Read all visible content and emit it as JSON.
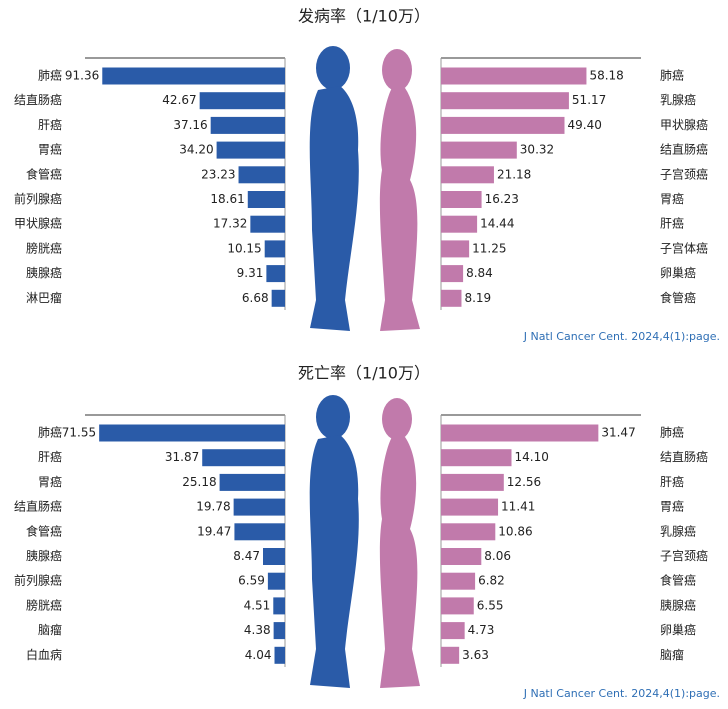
{
  "chart_data": [
    {
      "type": "butterfly",
      "title": "发病率（1/10万）",
      "source": "J Natl Cancer Cent. 2024,4(1):page.",
      "left": {
        "categories": [
          "肺癌",
          "结直肠癌",
          "肝癌",
          "胃癌",
          "食管癌",
          "前列腺癌",
          "甲状腺癌",
          "膀胱癌",
          "胰腺癌",
          "淋巴瘤"
        ],
        "values": [
          91.36,
          42.67,
          37.16,
          34.2,
          23.23,
          18.61,
          17.32,
          10.15,
          9.31,
          6.68
        ],
        "value_labels": [
          "91.36",
          "42.67",
          "37.16",
          "34.20",
          "23.23",
          "18.61",
          "17.32",
          "10.15",
          "9.31",
          "6.68"
        ],
        "color": "#2a5ba8",
        "xlim": [
          0,
          100
        ]
      },
      "right": {
        "categories": [
          "肺癌",
          "乳腺癌",
          "甲状腺癌",
          "结直肠癌",
          "子宫颈癌",
          "胃癌",
          "肝癌",
          "子宫体癌",
          "卵巢癌",
          "食管癌"
        ],
        "values": [
          58.18,
          51.17,
          49.4,
          30.32,
          21.18,
          16.23,
          14.44,
          11.25,
          8.84,
          8.19
        ],
        "value_labels": [
          "58.18",
          "51.17",
          "49.40",
          "30.32",
          "21.18",
          "16.23",
          "14.44",
          "11.25",
          "8.84",
          "8.19"
        ],
        "color": "#c17aab",
        "xlim": [
          0,
          80
        ]
      }
    },
    {
      "type": "butterfly",
      "title": "死亡率（1/10万）",
      "source": "J Natl Cancer Cent. 2024,4(1):page.",
      "left": {
        "categories": [
          "肺癌",
          "肝癌",
          "胃癌",
          "结直肠癌",
          "食管癌",
          "胰腺癌",
          "前列腺癌",
          "膀胱癌",
          "脑瘤",
          "白血病"
        ],
        "values": [
          71.55,
          31.87,
          25.18,
          19.78,
          19.47,
          8.47,
          6.59,
          4.51,
          4.38,
          4.04
        ],
        "value_labels": [
          "71.55",
          "31.87",
          "25.18",
          "19.78",
          "19.47",
          "8.47",
          "6.59",
          "4.51",
          "4.38",
          "4.04"
        ],
        "color": "#2a5ba8",
        "xlim": [
          0,
          77
        ]
      },
      "right": {
        "categories": [
          "肺癌",
          "结直肠癌",
          "肝癌",
          "胃癌",
          "乳腺癌",
          "子宫颈癌",
          "食管癌",
          "胰腺癌",
          "卵巢癌",
          "脑瘤"
        ],
        "values": [
          31.47,
          14.1,
          12.56,
          11.41,
          10.86,
          8.06,
          6.82,
          6.55,
          4.73,
          3.63
        ],
        "value_labels": [
          "31.47",
          "14.10",
          "12.56",
          "11.41",
          "10.86",
          "8.06",
          "6.82",
          "6.55",
          "4.73",
          "3.63"
        ],
        "color": "#c17aab",
        "xlim": [
          0,
          40
        ]
      }
    }
  ]
}
